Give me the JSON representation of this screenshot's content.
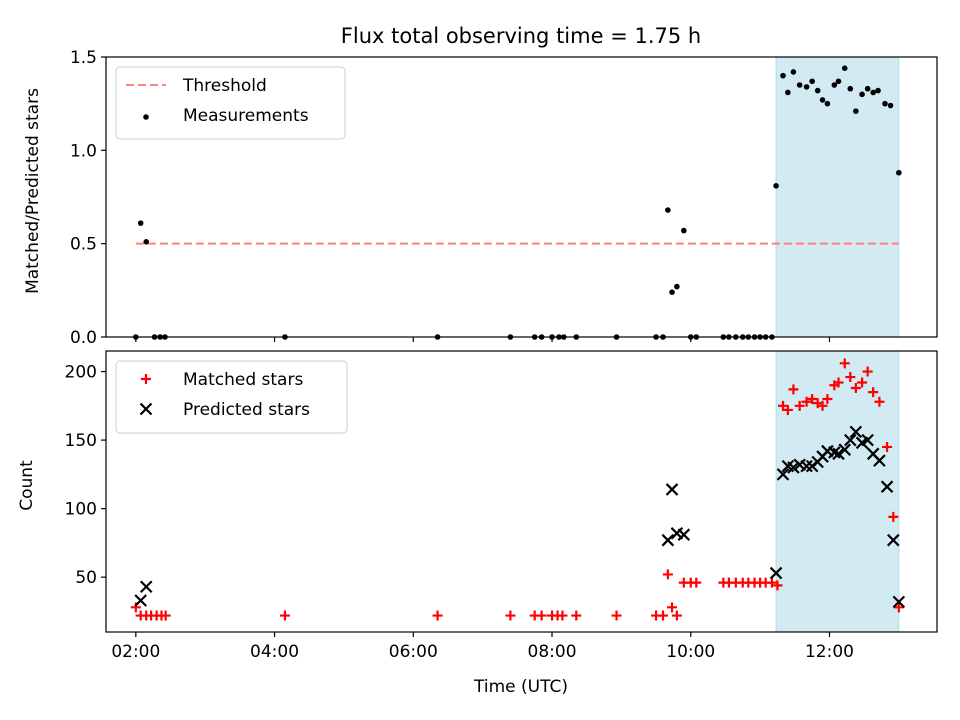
{
  "title": "Flux total observing time = 1.75 h",
  "xlabel": "Time (UTC)",
  "x_ticks": [
    "02:00",
    "04:00",
    "06:00",
    "08:00",
    "10:00",
    "12:00"
  ],
  "chart_data": [
    {
      "type": "scatter",
      "ylabel": "Matched/Predicted stars",
      "x_unit": "hours UTC",
      "xlim": [
        1.57,
        13.55
      ],
      "ylim": [
        0,
        1.5
      ],
      "y_ticks": [
        "0.0",
        "0.5",
        "1.0",
        "1.5"
      ],
      "grid": false,
      "legend_position": "upper-left",
      "shaded_region": {
        "x_start": 11.23,
        "x_end": 13.0,
        "color": "#add8e6"
      },
      "threshold": {
        "name": "Threshold",
        "y": 0.5,
        "x_start": 2.0,
        "x_end": 13.0,
        "color": "#ff8080",
        "style": "dashed"
      },
      "series": [
        {
          "name": "Measurements",
          "color": "#000000",
          "marker": "dot",
          "points": [
            [
              2.0,
              0.0
            ],
            [
              2.07,
              0.61
            ],
            [
              2.15,
              0.51
            ],
            [
              2.27,
              0.0
            ],
            [
              2.35,
              0.0
            ],
            [
              2.42,
              0.0
            ],
            [
              4.15,
              0.0
            ],
            [
              6.35,
              0.0
            ],
            [
              7.4,
              0.0
            ],
            [
              7.75,
              0.0
            ],
            [
              7.85,
              0.0
            ],
            [
              8.0,
              0.0
            ],
            [
              8.1,
              0.0
            ],
            [
              8.17,
              0.0
            ],
            [
              8.35,
              0.0
            ],
            [
              8.93,
              0.0
            ],
            [
              9.5,
              0.0
            ],
            [
              9.6,
              0.0
            ],
            [
              9.67,
              0.68
            ],
            [
              9.73,
              0.24
            ],
            [
              9.8,
              0.27
            ],
            [
              9.9,
              0.57
            ],
            [
              10.0,
              0.0
            ],
            [
              10.08,
              0.0
            ],
            [
              10.47,
              0.0
            ],
            [
              10.55,
              0.0
            ],
            [
              10.65,
              0.0
            ],
            [
              10.75,
              0.0
            ],
            [
              10.83,
              0.0
            ],
            [
              10.92,
              0.0
            ],
            [
              11.0,
              0.0
            ],
            [
              11.08,
              0.0
            ],
            [
              11.17,
              0.0
            ],
            [
              11.23,
              0.81
            ],
            [
              11.33,
              1.4
            ],
            [
              11.4,
              1.31
            ],
            [
              11.48,
              1.42
            ],
            [
              11.57,
              1.35
            ],
            [
              11.67,
              1.34
            ],
            [
              11.75,
              1.37
            ],
            [
              11.83,
              1.32
            ],
            [
              11.9,
              1.27
            ],
            [
              11.97,
              1.25
            ],
            [
              12.07,
              1.35
            ],
            [
              12.13,
              1.37
            ],
            [
              12.22,
              1.44
            ],
            [
              12.3,
              1.33
            ],
            [
              12.38,
              1.21
            ],
            [
              12.47,
              1.3
            ],
            [
              12.55,
              1.33
            ],
            [
              12.63,
              1.31
            ],
            [
              12.7,
              1.32
            ],
            [
              12.8,
              1.25
            ],
            [
              12.88,
              1.24
            ],
            [
              13.0,
              0.88
            ]
          ]
        }
      ]
    },
    {
      "type": "scatter",
      "ylabel": "Count",
      "x_unit": "hours UTC",
      "xlim": [
        1.57,
        13.55
      ],
      "ylim": [
        10,
        215
      ],
      "y_ticks": [
        "50",
        "100",
        "150",
        "200"
      ],
      "grid": false,
      "legend_position": "upper-left",
      "shaded_region": {
        "x_start": 11.23,
        "x_end": 13.0,
        "color": "#add8e6"
      },
      "series": [
        {
          "name": "Matched stars",
          "color": "#ff0000",
          "marker": "plus",
          "points": [
            [
              2.0,
              28
            ],
            [
              2.07,
              22
            ],
            [
              2.15,
              22
            ],
            [
              2.22,
              22
            ],
            [
              2.3,
              22
            ],
            [
              2.37,
              22
            ],
            [
              2.43,
              22
            ],
            [
              4.15,
              22
            ],
            [
              6.35,
              22
            ],
            [
              7.4,
              22
            ],
            [
              7.75,
              22
            ],
            [
              7.85,
              22
            ],
            [
              8.0,
              22
            ],
            [
              8.08,
              22
            ],
            [
              8.15,
              22
            ],
            [
              8.35,
              22
            ],
            [
              8.93,
              22
            ],
            [
              9.5,
              22
            ],
            [
              9.6,
              22
            ],
            [
              9.67,
              52
            ],
            [
              9.73,
              28
            ],
            [
              9.8,
              22
            ],
            [
              9.9,
              46
            ],
            [
              10.0,
              46
            ],
            [
              10.08,
              46
            ],
            [
              10.47,
              46
            ],
            [
              10.55,
              46
            ],
            [
              10.65,
              46
            ],
            [
              10.75,
              46
            ],
            [
              10.83,
              46
            ],
            [
              10.92,
              46
            ],
            [
              11.0,
              46
            ],
            [
              11.08,
              46
            ],
            [
              11.17,
              46
            ],
            [
              11.25,
              44
            ],
            [
              11.33,
              175
            ],
            [
              11.4,
              172
            ],
            [
              11.48,
              187
            ],
            [
              11.57,
              175
            ],
            [
              11.67,
              178
            ],
            [
              11.75,
              180
            ],
            [
              11.83,
              177
            ],
            [
              11.9,
              175
            ],
            [
              11.97,
              180
            ],
            [
              12.07,
              190
            ],
            [
              12.13,
              192
            ],
            [
              12.22,
              206
            ],
            [
              12.3,
              196
            ],
            [
              12.38,
              188
            ],
            [
              12.47,
              192
            ],
            [
              12.55,
              200
            ],
            [
              12.63,
              185
            ],
            [
              12.72,
              178
            ],
            [
              12.83,
              145
            ],
            [
              12.92,
              94
            ],
            [
              13.0,
              28
            ]
          ]
        },
        {
          "name": "Predicted stars",
          "color": "#000000",
          "marker": "x",
          "points": [
            [
              2.07,
              33
            ],
            [
              2.15,
              43
            ],
            [
              9.67,
              77
            ],
            [
              9.73,
              114
            ],
            [
              9.8,
              82
            ],
            [
              9.9,
              81
            ],
            [
              11.23,
              53
            ],
            [
              11.33,
              125
            ],
            [
              11.4,
              131
            ],
            [
              11.48,
              130
            ],
            [
              11.57,
              132
            ],
            [
              11.67,
              131
            ],
            [
              11.75,
              131
            ],
            [
              11.83,
              134
            ],
            [
              11.9,
              138
            ],
            [
              11.97,
              142
            ],
            [
              12.07,
              141
            ],
            [
              12.13,
              140
            ],
            [
              12.22,
              143
            ],
            [
              12.3,
              150
            ],
            [
              12.38,
              156
            ],
            [
              12.47,
              148
            ],
            [
              12.55,
              150
            ],
            [
              12.63,
              140
            ],
            [
              12.72,
              135
            ],
            [
              12.83,
              116
            ],
            [
              12.92,
              77
            ],
            [
              13.0,
              32
            ]
          ]
        }
      ]
    }
  ]
}
